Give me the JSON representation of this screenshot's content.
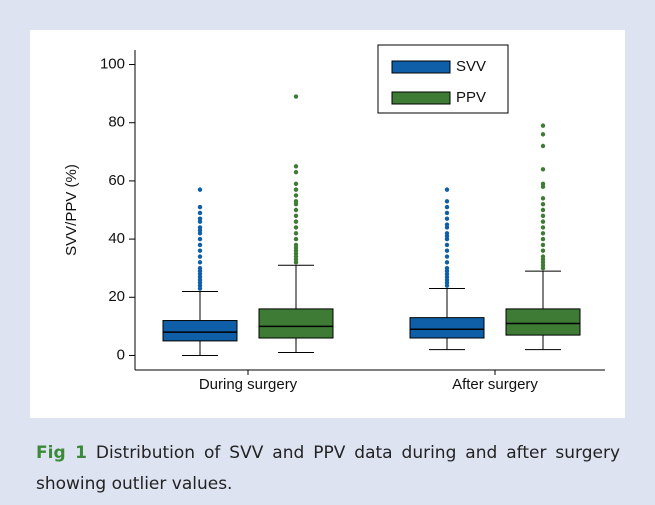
{
  "chart_data": {
    "type": "box",
    "y_label": "SVV/PPV (%)",
    "categories": [
      "During surgery",
      "After surgery"
    ],
    "ylim": [
      -5,
      105
    ],
    "yticks": [
      0,
      20,
      40,
      60,
      80,
      100
    ],
    "legend": "top-center",
    "series": [
      {
        "name": "SVV",
        "color": "#0e5fa8",
        "boxes": [
          {
            "min": 0,
            "q1": 5,
            "median": 8,
            "q3": 12,
            "max": 22,
            "outliers": [
              23,
              24,
              25,
              26,
              27,
              28,
              29,
              30,
              32,
              34,
              36,
              38,
              40,
              42,
              43,
              44,
              46,
              47,
              49,
              51,
              57
            ]
          },
          {
            "min": 2,
            "q1": 6,
            "median": 9,
            "q3": 13,
            "max": 23,
            "outliers": [
              24,
              25,
              26,
              27,
              28,
              29,
              30,
              32,
              34,
              36,
              38,
              40,
              41,
              42,
              44,
              45,
              47,
              49,
              51,
              53,
              57
            ]
          }
        ]
      },
      {
        "name": "PPV",
        "color": "#3e7b35",
        "boxes": [
          {
            "min": 1,
            "q1": 6,
            "median": 10,
            "q3": 16,
            "max": 31,
            "outliers": [
              32,
              33,
              34,
              35,
              36,
              37,
              38,
              40,
              42,
              44,
              46,
              48,
              50,
              52,
              53,
              55,
              57,
              59,
              63,
              65,
              89
            ]
          },
          {
            "min": 2,
            "q1": 7,
            "median": 11,
            "q3": 16,
            "max": 29,
            "outliers": [
              30,
              31,
              32,
              33,
              34,
              36,
              38,
              40,
              42,
              44,
              46,
              48,
              50,
              52,
              54,
              58,
              59,
              64,
              72,
              76,
              79
            ]
          }
        ]
      }
    ]
  },
  "caption": {
    "label": "Fig 1",
    "text": "Distribution of SVV and PPV data during and after surgery showing outlier values."
  }
}
